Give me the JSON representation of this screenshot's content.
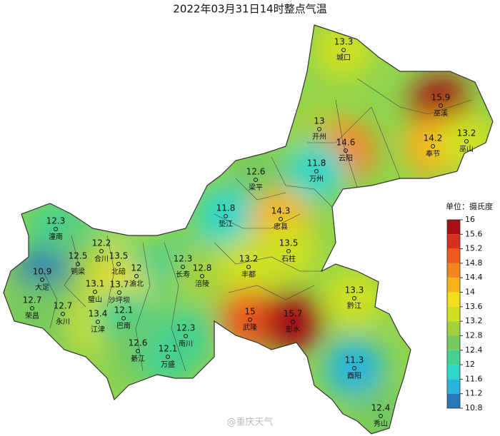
{
  "title": "2022年03月31日14时整点气温",
  "stations": [
    {
      "name": "城口",
      "value": 13.3
    },
    {
      "name": "巫溪",
      "value": 15.9
    },
    {
      "name": "开州",
      "value": 13
    },
    {
      "name": "云阳",
      "value": 14.6
    },
    {
      "name": "奉节",
      "value": 14.2
    },
    {
      "name": "巫山",
      "value": 13.2
    },
    {
      "name": "万州",
      "value": 11.8
    },
    {
      "name": "梁平",
      "value": 12.6
    },
    {
      "name": "垫江",
      "value": 11.8
    },
    {
      "name": "忠县",
      "value": 14.3
    },
    {
      "name": "石柱",
      "value": 13.5
    },
    {
      "name": "潼南",
      "value": 12.3
    },
    {
      "name": "合川",
      "value": 12.2
    },
    {
      "name": "铜梁",
      "value": 12.5
    },
    {
      "name": "北碚",
      "value": 13.5
    },
    {
      "name": "渝北",
      "value": 12
    },
    {
      "name": "大足",
      "value": 10.9
    },
    {
      "name": "璧山",
      "value": 13.1
    },
    {
      "name": "沙坪坝",
      "value": 13.7
    },
    {
      "name": "长寿",
      "value": 12.3
    },
    {
      "name": "涪陵",
      "value": 12.8
    },
    {
      "name": "丰都",
      "value": 13.2
    },
    {
      "name": "荣昌",
      "value": 12.7
    },
    {
      "name": "永川",
      "value": 12.7
    },
    {
      "name": "江津",
      "value": 13.4
    },
    {
      "name": "巴南",
      "value": 12.1
    },
    {
      "name": "武隆",
      "value": 15
    },
    {
      "name": "彭水",
      "value": 15.7
    },
    {
      "name": "黔江",
      "value": 13.3
    },
    {
      "name": "綦江",
      "value": 12.6
    },
    {
      "name": "南川",
      "value": 12.3
    },
    {
      "name": "万盛",
      "value": 12.1
    },
    {
      "name": "酉阳",
      "value": 11.3
    },
    {
      "name": "秀山",
      "value": 12.4
    }
  ],
  "legend": {
    "unit": "单位：摄氏度",
    "ticks": [
      16,
      15.6,
      15.2,
      14.8,
      14.4,
      14,
      13.6,
      13.2,
      12.8,
      12.4,
      12,
      11.6,
      11.2,
      10.8
    ],
    "colors": [
      "#a50f15",
      "#d7301f",
      "#ee5a1c",
      "#f5861f",
      "#f9b21a",
      "#f3df1c",
      "#cfe021",
      "#a3d13c",
      "#74c95f",
      "#45d08f",
      "#2fd7c8",
      "#27b5db",
      "#2a78b5"
    ]
  },
  "watermark": "@重庆天气"
}
